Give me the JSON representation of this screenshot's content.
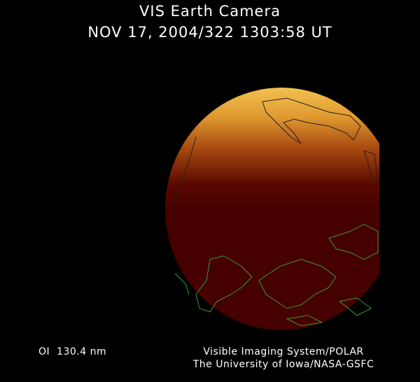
{
  "title": "VIS Earth Camera",
  "subtitle": "NOV 17, 2004/322 1303:58 UT",
  "wavelength": "OI  130.4 nm",
  "credit_line1": "Visible Imaging System/POLAR",
  "credit_line2": "The University of Iowa/NASA-GSFC",
  "colors": {
    "background": "#000000",
    "disk_dark": "#460000",
    "aurora_bright": "#f0b040",
    "coastline": "#3a9a2a"
  }
}
